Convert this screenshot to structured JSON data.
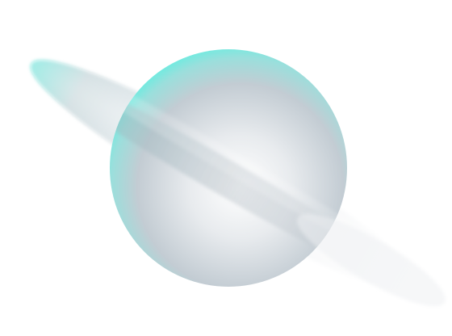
{
  "scene": {
    "subject": "planet-illustration",
    "colors": {
      "background": "#ffffff",
      "highlight": "#ffffff",
      "mid_grey": "#dfe3e7",
      "shadow_grey": "#b9c2ca",
      "accent_cyan": "#5ff0e2"
    }
  }
}
